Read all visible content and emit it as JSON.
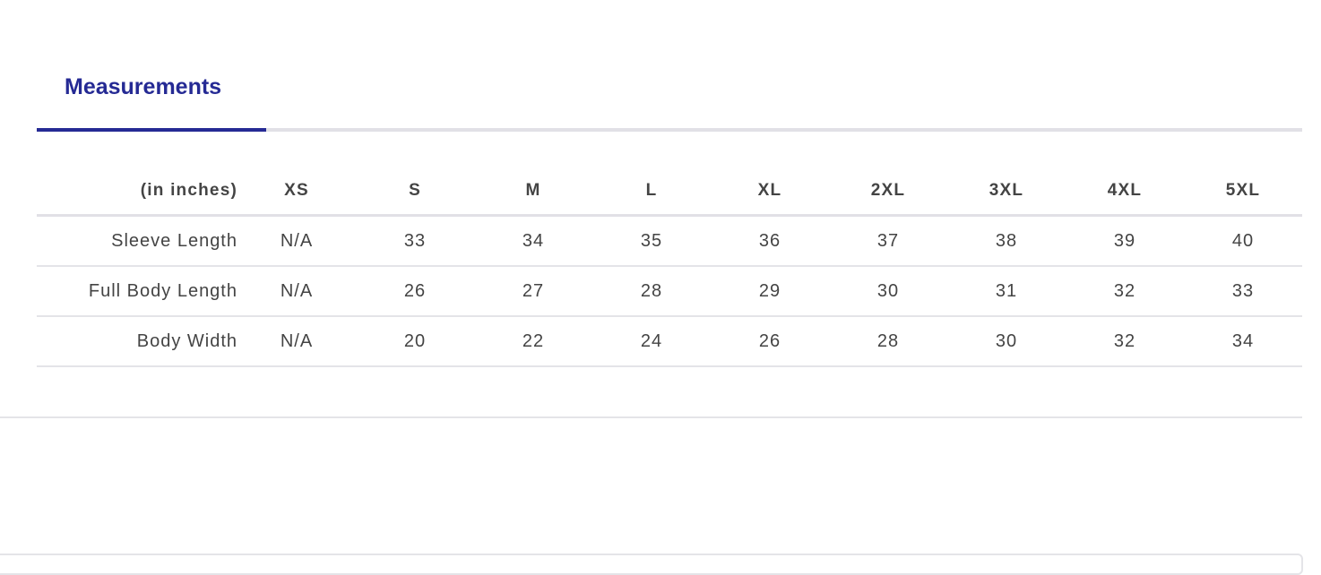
{
  "tabs": [
    {
      "label": "Measurements",
      "active": true
    }
  ],
  "accent_color": "#252a94",
  "table": {
    "unit_label": "(in inches)",
    "sizes": [
      "XS",
      "S",
      "M",
      "L",
      "XL",
      "2XL",
      "3XL",
      "4XL",
      "5XL"
    ],
    "rows": [
      {
        "label": "Sleeve Length",
        "values": [
          "N/A",
          "33",
          "34",
          "35",
          "36",
          "37",
          "38",
          "39",
          "40"
        ]
      },
      {
        "label": "Full Body Length",
        "values": [
          "N/A",
          "26",
          "27",
          "28",
          "29",
          "30",
          "31",
          "32",
          "33"
        ]
      },
      {
        "label": "Body Width",
        "values": [
          "N/A",
          "20",
          "22",
          "24",
          "26",
          "28",
          "30",
          "32",
          "34"
        ]
      }
    ]
  }
}
